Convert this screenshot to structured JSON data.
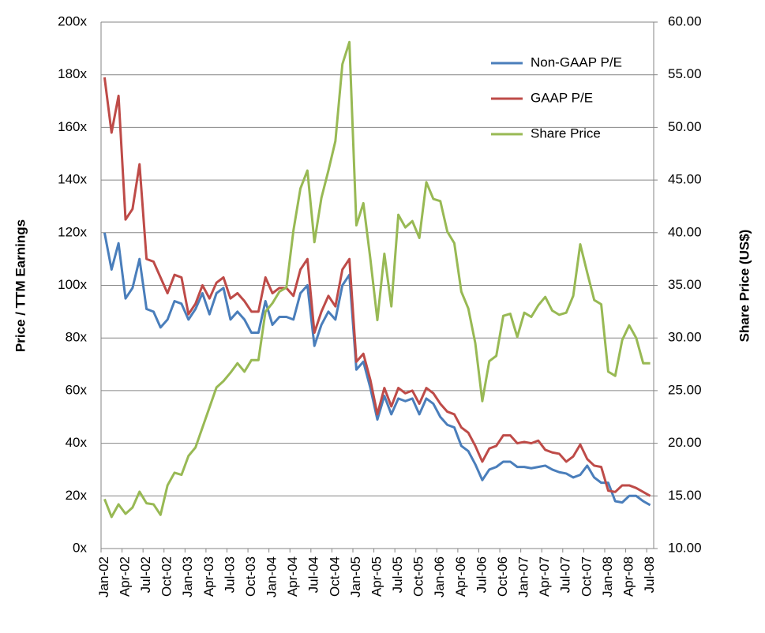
{
  "chart_data": {
    "type": "line",
    "y_label": "Price / TTM Earnings",
    "y2_label": "Share Price (US$)",
    "categories": [
      "Jan-02",
      null,
      null,
      "Apr-02",
      null,
      null,
      "Jul-02",
      null,
      null,
      "Oct-02",
      null,
      null,
      "Jan-03",
      null,
      null,
      "Apr-03",
      null,
      null,
      "Jul-03",
      null,
      null,
      "Oct-03",
      null,
      null,
      "Jan-04",
      null,
      null,
      "Apr-04",
      null,
      null,
      "Jul-04",
      null,
      null,
      "Oct-04",
      null,
      null,
      "Jan-05",
      null,
      null,
      "Apr-05",
      null,
      null,
      "Jul-05",
      null,
      null,
      "Oct-05",
      null,
      null,
      "Jan-06",
      null,
      null,
      "Apr-06",
      null,
      null,
      "Jul-06",
      null,
      null,
      "Oct-06",
      null,
      null,
      "Jan-07",
      null,
      null,
      "Apr-07",
      null,
      null,
      "Jul-07",
      null,
      null,
      "Oct-07",
      null,
      null,
      "Jan-08",
      null,
      null,
      "Apr-08",
      null,
      null,
      "Jul-08"
    ],
    "series": [
      {
        "name": "Non-GAAP P/E",
        "color": "#4a7ebb",
        "values": [
          120,
          106,
          116,
          95,
          99,
          110,
          91,
          90,
          84,
          87,
          94,
          93,
          87,
          91,
          97,
          89,
          97,
          99,
          87,
          90,
          87,
          82,
          82,
          94,
          85,
          88,
          88,
          87,
          97,
          100,
          77,
          85,
          90,
          87,
          100,
          104,
          68,
          71,
          61,
          49,
          58,
          51,
          57,
          56,
          57,
          51,
          57,
          55,
          50,
          47,
          46,
          39,
          37,
          32,
          26,
          30,
          31,
          33,
          33,
          31,
          31,
          30.5,
          31,
          31.5,
          30,
          29,
          28.5,
          27,
          28,
          31.5,
          27,
          25,
          25,
          18,
          17.5,
          20,
          20,
          18,
          16.5
        ]
      },
      {
        "name": "GAAP P/E",
        "color": "#be4b48",
        "values": [
          179,
          158,
          172,
          125,
          129,
          146,
          110,
          109,
          103,
          97,
          104,
          103,
          89,
          93,
          100,
          95,
          101,
          103,
          95,
          97,
          94,
          90,
          90,
          103,
          97,
          99,
          99,
          96,
          106,
          110,
          82,
          90,
          96,
          92,
          106,
          110,
          71,
          74,
          64,
          51,
          61,
          54,
          61,
          59,
          60,
          55,
          61,
          59,
          55,
          52,
          51,
          46,
          44,
          39,
          33,
          38,
          39,
          43,
          43,
          40,
          40.5,
          40,
          41,
          37.5,
          36.5,
          36,
          33,
          35,
          39.5,
          34,
          31.5,
          31,
          22,
          21.5,
          24,
          24,
          23,
          21.5,
          20
        ]
      },
      {
        "name": "Share Price",
        "color": "#98b954",
        "axis": "y2",
        "values": [
          14.7,
          13,
          14.2,
          13.3,
          13.9,
          15.4,
          14.3,
          14.2,
          13.2,
          16,
          17.2,
          17,
          18.8,
          19.6,
          21.5,
          23.4,
          25.3,
          25.9,
          26.7,
          27.6,
          26.8,
          27.9,
          27.9,
          32.5,
          33.3,
          34.4,
          34.8,
          40.2,
          44.2,
          45.9,
          39.1,
          43.3,
          45.9,
          48.7,
          56,
          58.1,
          40.7,
          42.8,
          37.5,
          31.7,
          38,
          33,
          41.7,
          40.5,
          41.1,
          39.5,
          44.8,
          43.2,
          43,
          40.1,
          39,
          34.4,
          32.8,
          29.5,
          24,
          27.8,
          28.3,
          32.1,
          32.3,
          30.1,
          32.4,
          32,
          33.1,
          33.9,
          32.6,
          32.2,
          32.4,
          34,
          38.9,
          36.2,
          33.6,
          33.2,
          26.8,
          26.4,
          29.8,
          31.2,
          30,
          27.6,
          27.6
        ]
      }
    ],
    "ylim": [
      0,
      200
    ],
    "yticks": [
      {
        "value": 0,
        "label": "0x"
      },
      {
        "value": 20,
        "label": "20x"
      },
      {
        "value": 40,
        "label": "40x"
      },
      {
        "value": 60,
        "label": "60x"
      },
      {
        "value": 80,
        "label": "80x"
      },
      {
        "value": 100,
        "label": "100x"
      },
      {
        "value": 120,
        "label": "120x"
      },
      {
        "value": 140,
        "label": "140x"
      },
      {
        "value": 160,
        "label": "160x"
      },
      {
        "value": 180,
        "label": "180x"
      },
      {
        "value": 200,
        "label": "200x"
      }
    ],
    "y2lim": [
      10,
      60
    ],
    "y2ticks": [
      {
        "value": 10,
        "label": "10.00"
      },
      {
        "value": 15,
        "label": "15.00"
      },
      {
        "value": 20,
        "label": "20.00"
      },
      {
        "value": 25,
        "label": "25.00"
      },
      {
        "value": 30,
        "label": "30.00"
      },
      {
        "value": 35,
        "label": "35.00"
      },
      {
        "value": 40,
        "label": "40.00"
      },
      {
        "value": 45,
        "label": "45.00"
      },
      {
        "value": 50,
        "label": "50.00"
      },
      {
        "value": 55,
        "label": "55.00"
      },
      {
        "value": 60,
        "label": "60.00"
      }
    ],
    "grid": true,
    "legend": "upper right"
  }
}
